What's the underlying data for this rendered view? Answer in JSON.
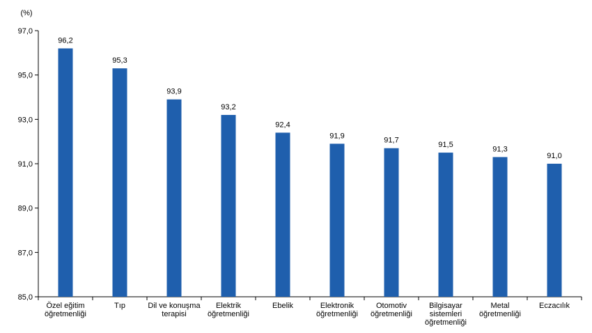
{
  "chart_data": {
    "type": "bar",
    "unit_label": "(%)",
    "categories": [
      [
        "Özel eğitim",
        "öğretmenliği"
      ],
      [
        "Tıp"
      ],
      [
        "Dil ve konuşma",
        "terapisi"
      ],
      [
        "Elektrik",
        "öğretmenliği"
      ],
      [
        "Ebelik"
      ],
      [
        "Elektronik",
        "öğretmenliği"
      ],
      [
        "Otomotiv",
        "öğretmenliği"
      ],
      [
        "Bilgisayar",
        "sistemleri",
        "öğretmenliği"
      ],
      [
        "Metal",
        "öğretmenliği"
      ],
      [
        "Eczacılık"
      ]
    ],
    "values": [
      96.2,
      95.3,
      93.9,
      93.2,
      92.4,
      91.9,
      91.7,
      91.5,
      91.3,
      91.0
    ],
    "value_labels": [
      "96,2",
      "95,3",
      "93,9",
      "93,2",
      "92,4",
      "91,9",
      "91,7",
      "91,5",
      "91,3",
      "91,0"
    ],
    "yticks": [
      85,
      87,
      89,
      91,
      93,
      95,
      97
    ],
    "ytick_labels": [
      "85,0",
      "87,0",
      "89,0",
      "91,0",
      "93,0",
      "95,0",
      "97,0"
    ],
    "ylim": [
      85,
      97
    ],
    "grid": false,
    "bar_color": "#1f5fad"
  }
}
